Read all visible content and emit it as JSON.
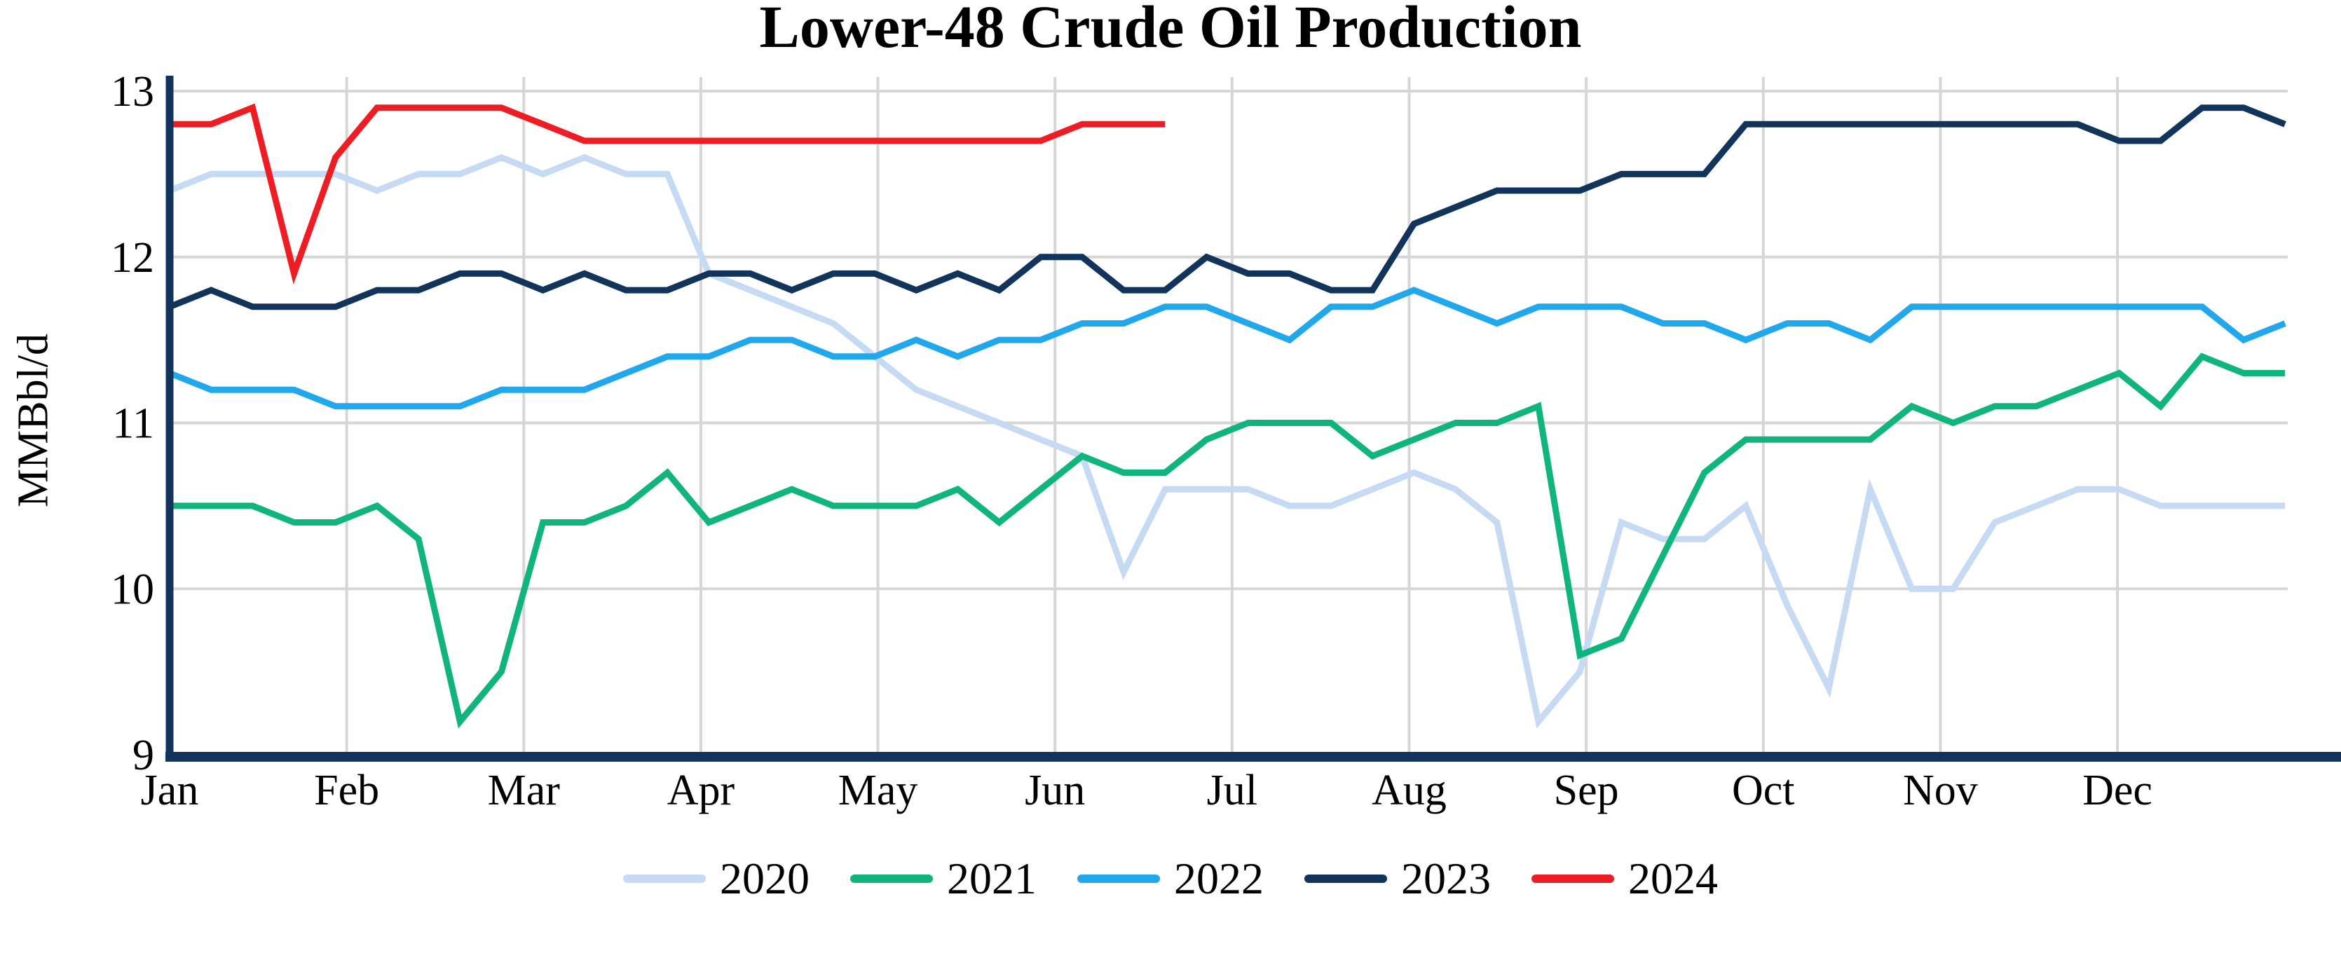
{
  "title": "Lower-48 Crude Oil Production",
  "chart_data": {
    "type": "line",
    "title": "Lower-48 Crude Oil Production",
    "xlabel": "",
    "ylabel": "MMBbl/d",
    "ylim": [
      9,
      13
    ],
    "yticks": [
      13,
      12,
      11,
      10,
      9
    ],
    "x_tick_labels": [
      "Jan",
      "Feb",
      "Mar",
      "Apr",
      "May",
      "Jun",
      "Jul",
      "Aug",
      "Sep",
      "Oct",
      "Nov",
      "Dec"
    ],
    "x_unit": "week of year",
    "grid": true,
    "legend_position": "bottom",
    "series": [
      {
        "name": "2020",
        "color": "#c6dbf3",
        "values": [
          12.4,
          12.5,
          12.5,
          12.5,
          12.5,
          12.4,
          12.5,
          12.5,
          12.6,
          12.5,
          12.6,
          12.5,
          12.5,
          11.9,
          11.8,
          11.7,
          11.6,
          11.4,
          11.2,
          11.1,
          11.0,
          10.9,
          10.8,
          10.1,
          10.6,
          10.6,
          10.6,
          10.5,
          10.5,
          10.6,
          10.7,
          10.6,
          10.4,
          9.2,
          9.5,
          10.4,
          10.3,
          10.3,
          10.5,
          9.9,
          9.4,
          10.6,
          10.0,
          10.0,
          10.4,
          10.5,
          10.6,
          10.6,
          10.5,
          10.5,
          10.5,
          10.5
        ]
      },
      {
        "name": "2021",
        "color": "#10b57d",
        "values": [
          10.5,
          10.5,
          10.5,
          10.4,
          10.4,
          10.5,
          10.3,
          9.2,
          9.5,
          10.4,
          10.4,
          10.5,
          10.7,
          10.4,
          10.5,
          10.6,
          10.5,
          10.5,
          10.5,
          10.6,
          10.4,
          10.6,
          10.8,
          10.7,
          10.7,
          10.9,
          11.0,
          11.0,
          11.0,
          10.8,
          10.9,
          11.0,
          11.0,
          11.1,
          9.6,
          9.7,
          10.2,
          10.7,
          10.9,
          10.9,
          10.9,
          10.9,
          11.1,
          11.0,
          11.1,
          11.1,
          11.2,
          11.3,
          11.1,
          11.4,
          11.3,
          11.3
        ]
      },
      {
        "name": "2022",
        "color": "#21a8ec",
        "values": [
          11.3,
          11.2,
          11.2,
          11.2,
          11.1,
          11.1,
          11.1,
          11.1,
          11.2,
          11.2,
          11.2,
          11.3,
          11.4,
          11.4,
          11.5,
          11.5,
          11.4,
          11.4,
          11.5,
          11.4,
          11.5,
          11.5,
          11.6,
          11.6,
          11.7,
          11.7,
          11.6,
          11.5,
          11.7,
          11.7,
          11.8,
          11.7,
          11.6,
          11.7,
          11.7,
          11.7,
          11.6,
          11.6,
          11.5,
          11.6,
          11.6,
          11.5,
          11.7,
          11.7,
          11.7,
          11.7,
          11.7,
          11.7,
          11.7,
          11.7,
          11.5,
          11.6
        ]
      },
      {
        "name": "2023",
        "color": "#12345b",
        "values": [
          11.7,
          11.8,
          11.7,
          11.7,
          11.7,
          11.8,
          11.8,
          11.9,
          11.9,
          11.8,
          11.9,
          11.8,
          11.8,
          11.9,
          11.9,
          11.8,
          11.9,
          11.9,
          11.8,
          11.9,
          11.8,
          12.0,
          12.0,
          11.8,
          11.8,
          12.0,
          11.9,
          11.9,
          11.8,
          11.8,
          12.2,
          12.3,
          12.4,
          12.4,
          12.4,
          12.5,
          12.5,
          12.5,
          12.8,
          12.8,
          12.8,
          12.8,
          12.8,
          12.8,
          12.8,
          12.8,
          12.8,
          12.7,
          12.7,
          12.9,
          12.9,
          12.8
        ]
      },
      {
        "name": "2024",
        "color": "#ee1c23",
        "values": [
          12.8,
          12.8,
          12.9,
          11.9,
          12.6,
          12.9,
          12.9,
          12.9,
          12.9,
          12.8,
          12.7,
          12.7,
          12.7,
          12.7,
          12.7,
          12.7,
          12.7,
          12.7,
          12.7,
          12.7,
          12.7,
          12.7,
          12.8,
          12.8,
          12.8
        ]
      }
    ]
  },
  "colors": {
    "background": "#ffffff",
    "gridline": "#d6d6d6",
    "axis": "#12345b",
    "text": "#000000"
  }
}
